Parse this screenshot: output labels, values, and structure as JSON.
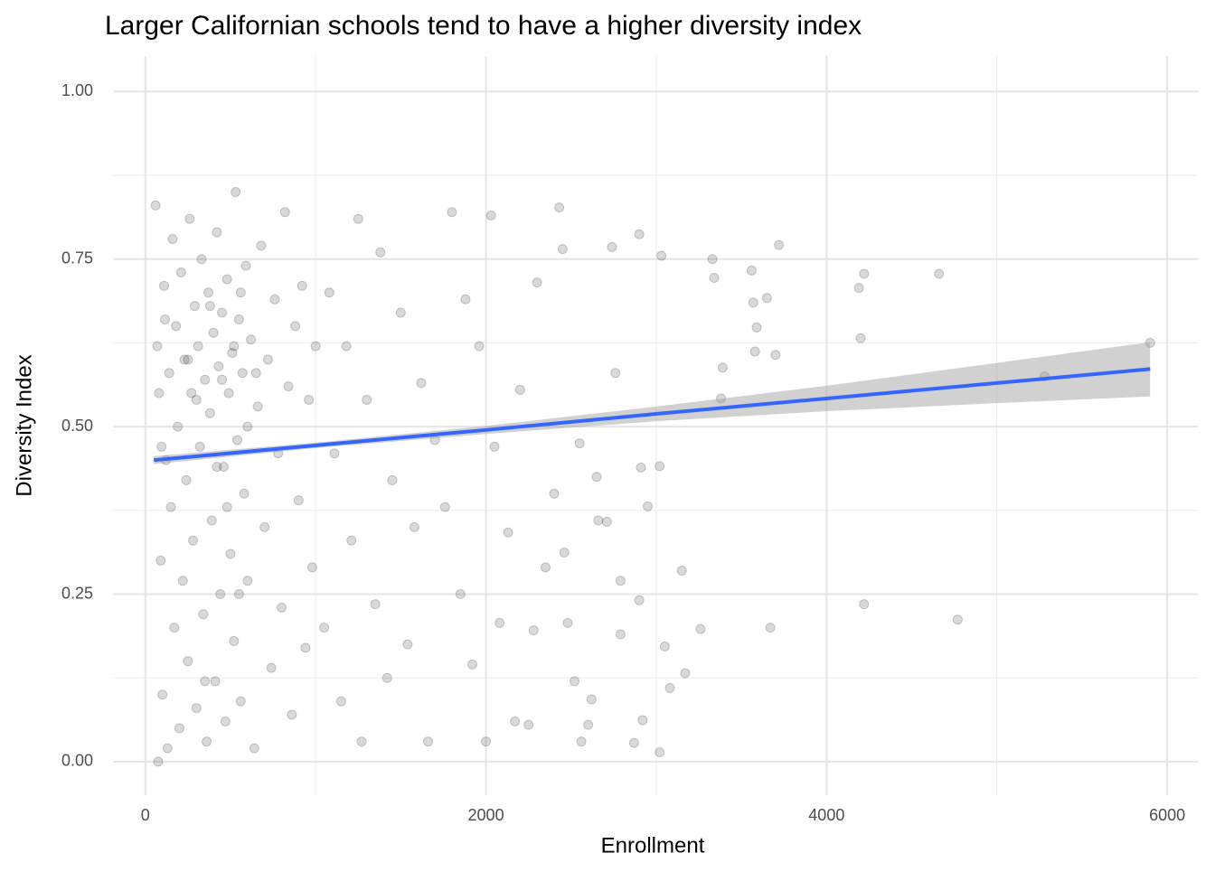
{
  "chart_data": {
    "type": "scatter",
    "title": "Larger Californian schools tend to have a higher diversity index",
    "x_label": "Enrollment",
    "y_label": "Diversity Index",
    "x": [
      60,
      70,
      80,
      90,
      100,
      110,
      120,
      130,
      140,
      150,
      160,
      170,
      180,
      190,
      200,
      210,
      220,
      230,
      240,
      250,
      260,
      270,
      280,
      290,
      300,
      310,
      320,
      330,
      340,
      350,
      360,
      370,
      380,
      390,
      400,
      410,
      420,
      430,
      440,
      450,
      460,
      470,
      480,
      490,
      500,
      510,
      520,
      530,
      540,
      550,
      560,
      570,
      580,
      590,
      600,
      620,
      640,
      660,
      680,
      700,
      720,
      740,
      760,
      780,
      800,
      820,
      840,
      860,
      880,
      900,
      920,
      940,
      960,
      980,
      1000,
      75,
      95,
      115,
      450,
      380,
      520,
      600,
      420,
      560,
      300,
      480,
      650,
      350,
      550,
      250,
      1050,
      1080,
      1110,
      1150,
      1180,
      1210,
      1250,
      1270,
      1300,
      1350,
      1380,
      1420,
      1450,
      1500,
      1540,
      1580,
      1620,
      1660,
      1700,
      1760,
      1800,
      1850,
      1880,
      1920,
      1960,
      2000,
      2030,
      2050,
      2080,
      2130,
      2170,
      2200,
      2250,
      2280,
      2300,
      2350,
      2400,
      2430,
      2450,
      2460,
      2480,
      2520,
      2550,
      2560,
      2600,
      2620,
      2650,
      2660,
      2710,
      2740,
      2760,
      2790,
      2790,
      2870,
      2900,
      2900,
      2910,
      2920,
      2950,
      3020,
      3030,
      3020,
      3050,
      3080,
      3150,
      3170,
      3260,
      3340,
      3330,
      3390,
      3380,
      3560,
      3570,
      3580,
      3590,
      3650,
      3670,
      3700,
      3720,
      4190,
      4200,
      4220,
      4220,
      4660,
      4770,
      5280,
      5900
    ],
    "values": [
      0.83,
      0.62,
      0.55,
      0.3,
      0.1,
      0.71,
      0.45,
      0.02,
      0.58,
      0.38,
      0.78,
      0.2,
      0.65,
      0.5,
      0.05,
      0.73,
      0.27,
      0.6,
      0.42,
      0.15,
      0.81,
      0.55,
      0.33,
      0.68,
      0.08,
      0.62,
      0.47,
      0.75,
      0.22,
      0.57,
      0.03,
      0.7,
      0.52,
      0.36,
      0.64,
      0.12,
      0.79,
      0.59,
      0.25,
      0.67,
      0.44,
      0.06,
      0.72,
      0.55,
      0.31,
      0.61,
      0.18,
      0.85,
      0.48,
      0.66,
      0.09,
      0.58,
      0.4,
      0.74,
      0.27,
      0.63,
      0.02,
      0.53,
      0.77,
      0.35,
      0.6,
      0.14,
      0.69,
      0.46,
      0.23,
      0.82,
      0.56,
      0.07,
      0.65,
      0.39,
      0.71,
      0.17,
      0.54,
      0.29,
      0.62,
      0.0,
      0.47,
      0.66,
      0.57,
      0.68,
      0.62,
      0.5,
      0.44,
      0.7,
      0.54,
      0.38,
      0.58,
      0.12,
      0.25,
      0.6,
      0.2,
      0.7,
      0.46,
      0.09,
      0.62,
      0.33,
      0.81,
      0.03,
      0.54,
      0.235,
      0.76,
      0.125,
      0.42,
      0.67,
      0.175,
      0.35,
      0.565,
      0.03,
      0.48,
      0.38,
      0.82,
      0.25,
      0.69,
      0.145,
      0.62,
      0.03,
      0.815,
      0.47,
      0.207,
      0.342,
      0.06,
      0.555,
      0.055,
      0.196,
      0.715,
      0.29,
      0.4,
      0.827,
      0.765,
      0.312,
      0.207,
      0.12,
      0.475,
      0.03,
      0.055,
      0.093,
      0.425,
      0.36,
      0.358,
      0.768,
      0.58,
      0.19,
      0.27,
      0.028,
      0.787,
      0.241,
      0.439,
      0.062,
      0.381,
      0.014,
      0.755,
      0.441,
      0.172,
      0.11,
      0.285,
      0.132,
      0.198,
      0.722,
      0.75,
      0.588,
      0.542,
      0.733,
      0.685,
      0.612,
      0.648,
      0.692,
      0.2,
      0.607,
      0.771,
      0.707,
      0.632,
      0.728,
      0.235,
      0.728,
      0.212,
      0.575,
      0.625
    ],
    "color": "#000000",
    "point_opacity": 0.15,
    "fit": {
      "x": [
        50,
        1000,
        2000,
        3000,
        4000,
        5000,
        5900
      ],
      "values": [
        0.45,
        0.472,
        0.495,
        0.519,
        0.542,
        0.565,
        0.586
      ],
      "lower": [
        0.444,
        0.468,
        0.489,
        0.508,
        0.523,
        0.535,
        0.545
      ],
      "upper": [
        0.456,
        0.476,
        0.501,
        0.53,
        0.561,
        0.595,
        0.626
      ],
      "color": "#3366ff",
      "band_color": "#999999"
    },
    "xlim": [
      -190,
      6180
    ],
    "ylim": [
      -0.05,
      1.053
    ],
    "xticks": [
      0,
      2000,
      4000,
      6000
    ],
    "yticks": [
      {
        "value": 0,
        "label": "0.00"
      },
      0.25,
      {
        "value": 0.5,
        "label": "0.50"
      },
      0.75,
      {
        "value": 1,
        "label": "1.00"
      }
    ],
    "xminor": [
      1000,
      3000,
      5000
    ],
    "yminor": [
      0.125,
      0.375,
      0.625,
      0.875
    ],
    "grid": true
  }
}
